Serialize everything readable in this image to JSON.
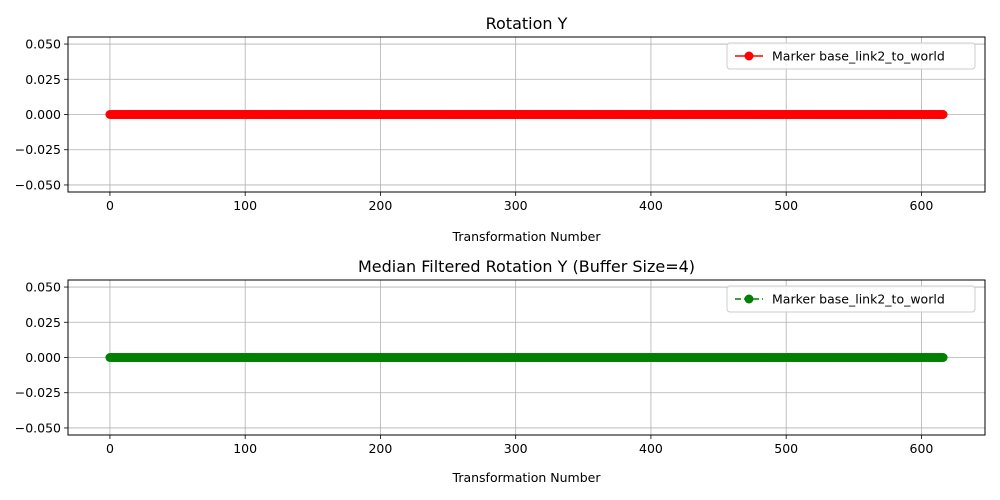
{
  "chart_data": [
    {
      "type": "line",
      "title": "Rotation Y",
      "xlabel": "Transformation Number",
      "ylabel": "",
      "xlim": [
        -31,
        647
      ],
      "ylim": [
        -0.055,
        0.055
      ],
      "x_ticks": [
        0,
        100,
        200,
        300,
        400,
        500,
        600
      ],
      "y_ticks": [
        -0.05,
        -0.025,
        0.0,
        0.025,
        0.05
      ],
      "y_tick_labels": [
        "−0.050",
        "−0.025",
        "0.000",
        "0.025",
        "0.050"
      ],
      "grid": true,
      "legend_position": "top-right",
      "series": [
        {
          "name": "Marker base_link2_to_world",
          "color": "#ff0000",
          "line_style": "solid",
          "marker": "circle",
          "x_start": 0,
          "x_end": 616,
          "x_step": 1,
          "y_constant": 0.0
        }
      ]
    },
    {
      "type": "line",
      "title": "Median Filtered Rotation Y (Buffer Size=4)",
      "xlabel": "Transformation Number",
      "ylabel": "",
      "xlim": [
        -31,
        647
      ],
      "ylim": [
        -0.055,
        0.055
      ],
      "x_ticks": [
        0,
        100,
        200,
        300,
        400,
        500,
        600
      ],
      "y_ticks": [
        -0.05,
        -0.025,
        0.0,
        0.025,
        0.05
      ],
      "y_tick_labels": [
        "−0.050",
        "−0.025",
        "0.000",
        "0.025",
        "0.050"
      ],
      "grid": true,
      "legend_position": "top-right",
      "series": [
        {
          "name": "Marker base_link2_to_world",
          "color": "#008000",
          "line_style": "dashed",
          "marker": "circle",
          "x_start": 0,
          "x_end": 616,
          "x_step": 1,
          "y_constant": 0.0
        }
      ]
    }
  ]
}
